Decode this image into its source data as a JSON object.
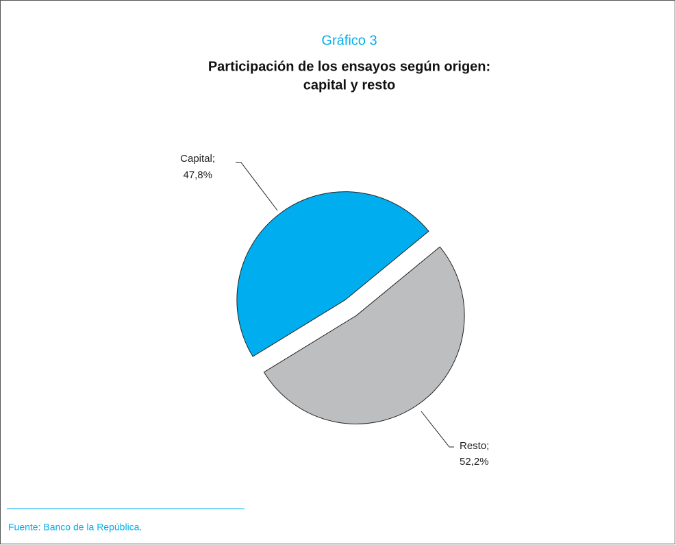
{
  "chart_data": {
    "type": "pie",
    "title": "Gráfico 3",
    "subtitle": [
      "Participación de los ensayos según origen:",
      "capital y resto"
    ],
    "categories": [
      "Capital;",
      "Resto;"
    ],
    "values": [
      47.8,
      52.2
    ],
    "value_labels": [
      "47,8%",
      "52,2%"
    ],
    "colors": [
      "#00aeef",
      "#bcbec0"
    ],
    "exploded": true,
    "source": "Fuente: Banco de la República."
  }
}
